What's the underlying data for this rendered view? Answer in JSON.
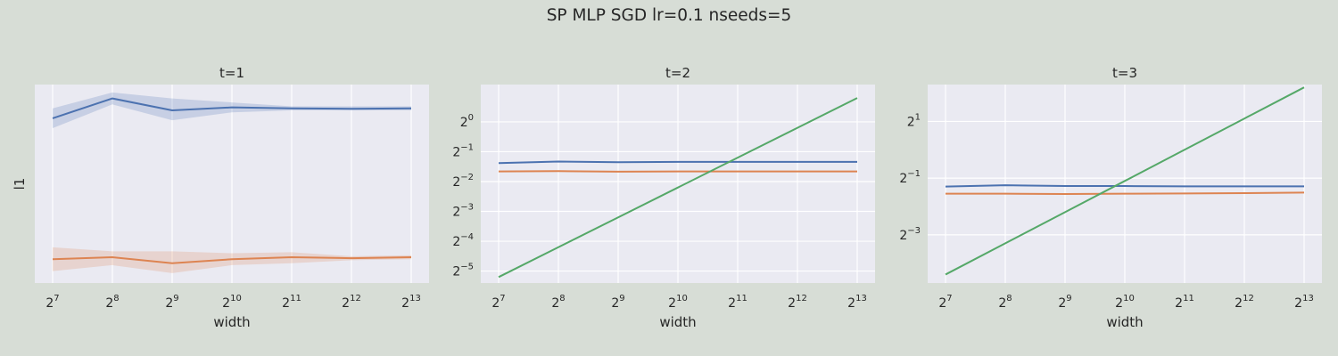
{
  "title": "SP MLP SGD lr=0.1 nseeds=5",
  "colors": {
    "figure_bg": "#d7ddd6",
    "axes_bg": "#eaeaf2",
    "grid": "#ffffff",
    "series": [
      "#4c72b0",
      "#dd8452",
      "#55a868"
    ]
  },
  "chart_data": [
    {
      "type": "line",
      "title": "t=1",
      "xlabel": "width",
      "ylabel": "l1",
      "xscale": "log2",
      "yscale": "linear",
      "grid": true,
      "x": [
        128,
        256,
        512,
        1024,
        2048,
        4096,
        8192
      ],
      "xtick_labels": [
        "2^7",
        "2^8",
        "2^9",
        "2^10",
        "2^11",
        "2^12",
        "2^13"
      ],
      "ylim": [
        0.0,
        1.0
      ],
      "yticks": [],
      "series": [
        {
          "values": [
            0.83,
            0.93,
            0.87,
            0.885,
            0.88,
            0.878,
            0.88
          ],
          "band_low": [
            0.78,
            0.9,
            0.82,
            0.86,
            0.87,
            0.87,
            0.87
          ],
          "band_high": [
            0.88,
            0.96,
            0.93,
            0.91,
            0.89,
            0.89,
            0.89
          ]
        },
        {
          "values": [
            0.12,
            0.13,
            0.1,
            0.12,
            0.13,
            0.125,
            0.13
          ],
          "band_low": [
            0.06,
            0.09,
            0.05,
            0.09,
            0.1,
            0.115,
            0.12
          ],
          "band_high": [
            0.18,
            0.16,
            0.16,
            0.15,
            0.155,
            0.135,
            0.14
          ]
        }
      ]
    },
    {
      "type": "line",
      "title": "t=2",
      "xlabel": "width",
      "ylabel": "",
      "xscale": "log2",
      "yscale": "log2",
      "grid": true,
      "x": [
        128,
        256,
        512,
        1024,
        2048,
        4096,
        8192
      ],
      "xtick_labels": [
        "2^7",
        "2^8",
        "2^9",
        "2^10",
        "2^11",
        "2^12",
        "2^13"
      ],
      "ylim_log2": [
        -5.4,
        1.25
      ],
      "yticks_log2": [
        0,
        -1,
        -2,
        -3,
        -4,
        -5
      ],
      "ytick_labels": [
        "2^0",
        "2^-1",
        "2^-2",
        "2^-3",
        "2^-4",
        "2^-5"
      ],
      "series": [
        {
          "values_log2": [
            -1.38,
            -1.33,
            -1.35,
            -1.34,
            -1.34,
            -1.34,
            -1.34
          ]
        },
        {
          "values_log2": [
            -1.66,
            -1.65,
            -1.67,
            -1.66,
            -1.66,
            -1.66,
            -1.66
          ]
        },
        {
          "values_log2": [
            -5.2,
            -4.2,
            -3.2,
            -2.2,
            -1.2,
            -0.2,
            0.8
          ]
        }
      ]
    },
    {
      "type": "line",
      "title": "t=3",
      "xlabel": "width",
      "ylabel": "",
      "xscale": "log2",
      "yscale": "log2",
      "grid": true,
      "x": [
        128,
        256,
        512,
        1024,
        2048,
        4096,
        8192
      ],
      "xtick_labels": [
        "2^7",
        "2^8",
        "2^9",
        "2^10",
        "2^11",
        "2^12",
        "2^13"
      ],
      "ylim_log2": [
        -4.7,
        2.3
      ],
      "yticks_log2": [
        1,
        -1,
        -3
      ],
      "ytick_labels": [
        "2^1",
        "2^-1",
        "2^-3"
      ],
      "series": [
        {
          "values_log2": [
            -1.3,
            -1.25,
            -1.28,
            -1.28,
            -1.29,
            -1.29,
            -1.29
          ]
        },
        {
          "values_log2": [
            -1.55,
            -1.55,
            -1.56,
            -1.55,
            -1.54,
            -1.53,
            -1.51
          ]
        },
        {
          "values_log2": [
            -4.4,
            -3.3,
            -2.2,
            -1.1,
            0.0,
            1.1,
            2.2
          ]
        }
      ]
    }
  ]
}
